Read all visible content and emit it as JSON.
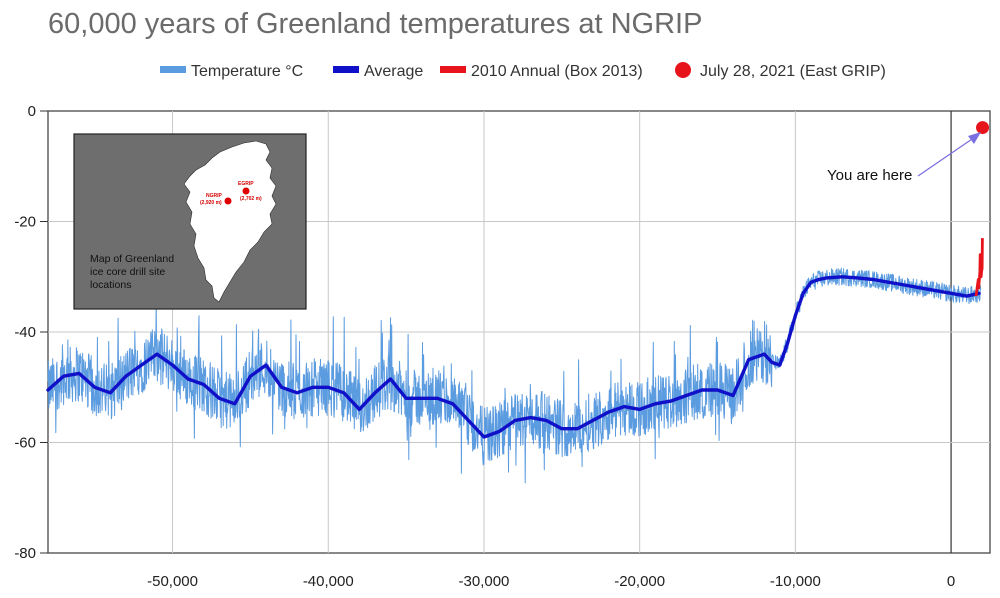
{
  "chart_data": {
    "type": "line",
    "title": "60,000 years of Greenland temperatures at NGRIP",
    "xlabel": "",
    "ylabel": "",
    "xlim": [
      -58000,
      2500
    ],
    "ylim": [
      -80,
      0
    ],
    "grid": true,
    "legend_position": "top",
    "x_ticks": [
      -50000,
      -40000,
      -30000,
      -20000,
      -10000,
      0
    ],
    "x_tick_labels": [
      "-50,000",
      "-40,000",
      "-30,000",
      "-20,000",
      "-10,000",
      "0"
    ],
    "y_ticks": [
      0,
      -20,
      -40,
      -60,
      -80
    ],
    "y_tick_labels": [
      "0",
      "-20",
      "-40",
      "-60",
      "-80"
    ],
    "legend": [
      {
        "label": "Temperature °C",
        "color": "#5b9bdf",
        "marker": "line"
      },
      {
        "label": "Average",
        "color": "#1010c8",
        "marker": "line"
      },
      {
        "label": "2010 Annual (Box 2013)",
        "color": "#e8141c",
        "marker": "line"
      },
      {
        "label": "July 28, 2021 (East GRIP)",
        "color": "#e8141c",
        "marker": "dot"
      }
    ],
    "series": [
      {
        "name": "Average",
        "color": "#1010c8",
        "x": [
          -58000,
          -57000,
          -56000,
          -55000,
          -54000,
          -53000,
          -52000,
          -51000,
          -50000,
          -49000,
          -48000,
          -47000,
          -46000,
          -45000,
          -44000,
          -43000,
          -42000,
          -41000,
          -40000,
          -39000,
          -38000,
          -37000,
          -36000,
          -35000,
          -34000,
          -33000,
          -32000,
          -31000,
          -30000,
          -29000,
          -28000,
          -27000,
          -26000,
          -25000,
          -24000,
          -23000,
          -22000,
          -21000,
          -20000,
          -19000,
          -18000,
          -17000,
          -16000,
          -15000,
          -14000,
          -13000,
          -12000,
          -11500,
          -11000,
          -10500,
          -10000,
          -9500,
          -9000,
          -8500,
          -8000,
          -7000,
          -6000,
          -5000,
          -4000,
          -3000,
          -2000,
          -1000,
          0,
          1000,
          1800
        ],
        "y": [
          -50.5,
          -48,
          -47.5,
          -50,
          -51,
          -48,
          -46,
          -44,
          -46,
          -48.5,
          -49.5,
          -52,
          -53,
          -48,
          -46,
          -50,
          -51,
          -50,
          -50,
          -51,
          -54,
          -51,
          -48.5,
          -52,
          -52,
          -52,
          -53,
          -56,
          -59,
          -58,
          -56,
          -55.5,
          -56,
          -57.5,
          -57.5,
          -56,
          -54.5,
          -53.5,
          -54,
          -53,
          -52.5,
          -51.5,
          -50.5,
          -50.5,
          -51.5,
          -45,
          -44,
          -45.5,
          -46,
          -42,
          -37,
          -33,
          -31,
          -30.5,
          -30.2,
          -30,
          -30.2,
          -30.5,
          -31,
          -31.5,
          -32,
          -32.5,
          -33,
          -33.5,
          -33
        ]
      },
      {
        "name": "2010 Annual (Box 2013)",
        "color": "#e8141c",
        "x": [
          1600,
          1650,
          1700,
          1750,
          1780,
          1800,
          1830,
          1850,
          1870,
          1900,
          1930,
          1960,
          1990,
          2010
        ],
        "y": [
          -33.5,
          -32.5,
          -31.5,
          -30.5,
          -32,
          -31,
          -30,
          -29,
          -26,
          -28,
          -30,
          -29,
          -28.5,
          -23
        ]
      },
      {
        "name": "July 28, 2021 (East GRIP)",
        "color": "#e8141c",
        "type": "scatter",
        "points": [
          {
            "x": 2021,
            "y": -3
          }
        ]
      }
    ],
    "noisy_series_note": "Temperature °C series is dense high-frequency data around the Average; rendered procedurally from the Average plus deterministic noise.",
    "annotations": [
      {
        "text": "You are here",
        "points_to": {
          "x": 2021,
          "y": -3
        }
      }
    ]
  },
  "inset_map": {
    "caption": "Map of Greenland ice core drill site locations",
    "caption_lines": [
      "Map of Greenland",
      "ice core drill site",
      "locations"
    ],
    "sites": [
      {
        "name": "NGRIP",
        "elevation": "(2,920 m)"
      },
      {
        "name": "EGRIP",
        "elevation": "(2,702 m)"
      }
    ]
  },
  "annotation_text": "You are here"
}
